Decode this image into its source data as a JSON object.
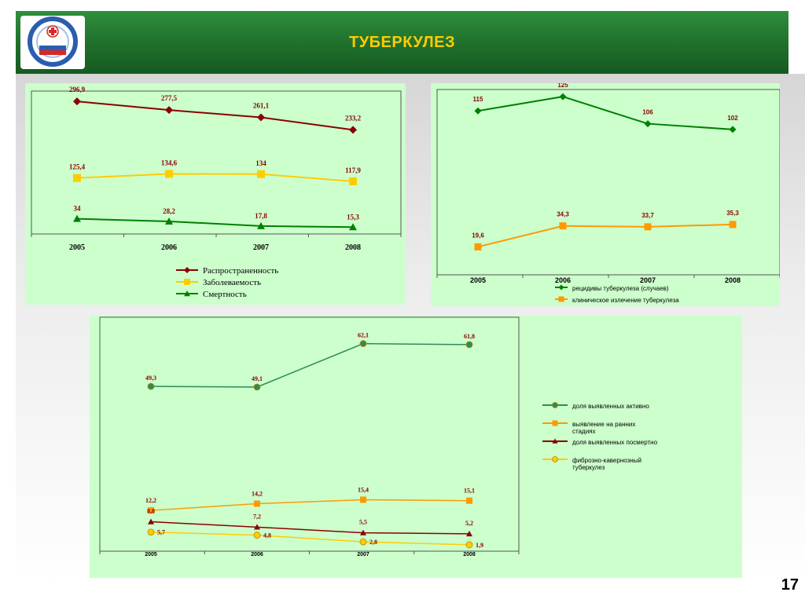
{
  "header": {
    "title": "ТУБЕРКУЛЕЗ",
    "logo": {
      "icon": "national-project-health-logo"
    }
  },
  "page_number": "17",
  "colors": {
    "header_green": "#1f6e2b",
    "title_yellow": "#ffcc00",
    "panel_bg": "#ccffcc",
    "series_darkred": "#8b0000",
    "series_yellow": "#ffcc00",
    "series_green": "#008000",
    "series_orange": "#ff9900"
  },
  "chart_data": [
    {
      "type": "line",
      "categories": [
        "2005",
        "2006",
        "2007",
        "2008"
      ],
      "ylim": [
        0,
        320
      ],
      "grid": false,
      "legend_placement": "bottom",
      "series": [
        {
          "name": "Распространенность",
          "values": [
            296.9,
            277.5,
            261.1,
            233.2
          ],
          "labels": [
            "296,9",
            "277,5",
            "261,1",
            "233,2"
          ],
          "color": "#8b0000",
          "marker": "diamond"
        },
        {
          "name": "Заболеваемость",
          "values": [
            125.4,
            134.6,
            134,
            117.9
          ],
          "labels": [
            "125,4",
            "134,6",
            "134",
            "117,9"
          ],
          "color": "#ffcc00",
          "marker": "square"
        },
        {
          "name": "Смертность",
          "values": [
            34,
            28.2,
            17.8,
            15.3
          ],
          "labels": [
            "34",
            "28,2",
            "17,8",
            "15,3"
          ],
          "color": "#008000",
          "marker": "triangle"
        }
      ]
    },
    {
      "type": "line",
      "categories": [
        "2005",
        "2006",
        "2007",
        "2008"
      ],
      "ylim": [
        0,
        130
      ],
      "grid": false,
      "legend_placement": "bottom",
      "series": [
        {
          "name": "рецидивы туберкулеза (случаев)",
          "values": [
            115,
            125,
            106,
            102
          ],
          "labels": [
            "115",
            "125",
            "106",
            "102"
          ],
          "color": "#008000",
          "marker": "diamond"
        },
        {
          "name": "клиническое излечение туберкулеза",
          "values": [
            19.6,
            34.3,
            33.7,
            35.3
          ],
          "labels": [
            "19,6",
            "34,3",
            "33,7",
            "35,3"
          ],
          "color": "#ff9900",
          "marker": "square"
        }
      ]
    },
    {
      "type": "line",
      "categories": [
        "2005",
        "2006",
        "2007",
        "2008"
      ],
      "ylim": [
        0,
        70
      ],
      "grid": false,
      "legend_placement": "right",
      "series": [
        {
          "name": "доля выявленных активно",
          "values": [
            49.3,
            49.1,
            62.1,
            61.8
          ],
          "labels": [
            "49,3",
            "49,1",
            "62,1",
            "61,8"
          ],
          "color": "#2e8b57",
          "marker": "circle"
        },
        {
          "name": "выявление на ранних стадиях",
          "values": [
            12.2,
            14.2,
            15.4,
            15.1
          ],
          "labels": [
            "12,2",
            "14,2",
            "15,4",
            "15,1"
          ],
          "color": "#ff9900",
          "marker": "square"
        },
        {
          "name": "доля выявленных посмертно",
          "values": [
            8.8,
            7.2,
            5.5,
            5.2
          ],
          "labels": [
            "8,8",
            "7,2",
            "5,5",
            "5,2"
          ],
          "color": "#8b0000",
          "marker": "triangle"
        },
        {
          "name": "фиброзно-кавернозный туберкулез",
          "values": [
            5.7,
            4.8,
            2.8,
            1.9
          ],
          "labels": [
            "5,7",
            "4,8",
            "2,8",
            "1,9"
          ],
          "color": "#ffcc00",
          "marker": "circle"
        }
      ]
    }
  ]
}
